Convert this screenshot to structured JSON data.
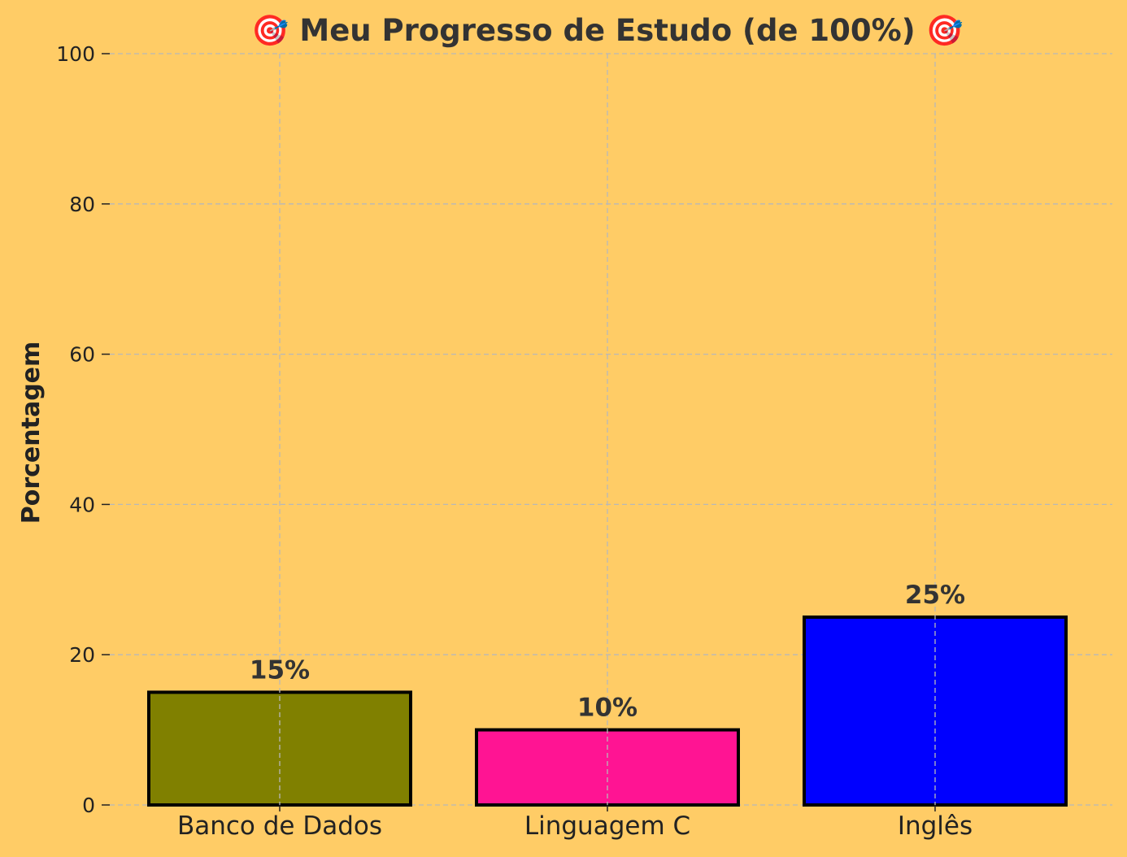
{
  "chart_data": {
    "type": "bar",
    "title": "🎯 Meu Progresso de Estudo (de 100%) 🎯",
    "xlabel": "",
    "ylabel": "Porcentagem",
    "categories": [
      "Banco de Dados",
      "Linguagem C",
      "Inglês"
    ],
    "values": [
      15,
      10,
      25
    ],
    "value_labels": [
      "15%",
      "10%",
      "25%"
    ],
    "bar_colors": [
      "#808000",
      "#FF1493",
      "#0000FF"
    ],
    "bar_edge_color": "#000000",
    "background_color": "#FFCC66",
    "ylim": [
      0,
      100
    ],
    "yticks": [
      0,
      20,
      40,
      60,
      80,
      100
    ],
    "grid": true,
    "grid_style": "dashed",
    "legend": "none"
  }
}
